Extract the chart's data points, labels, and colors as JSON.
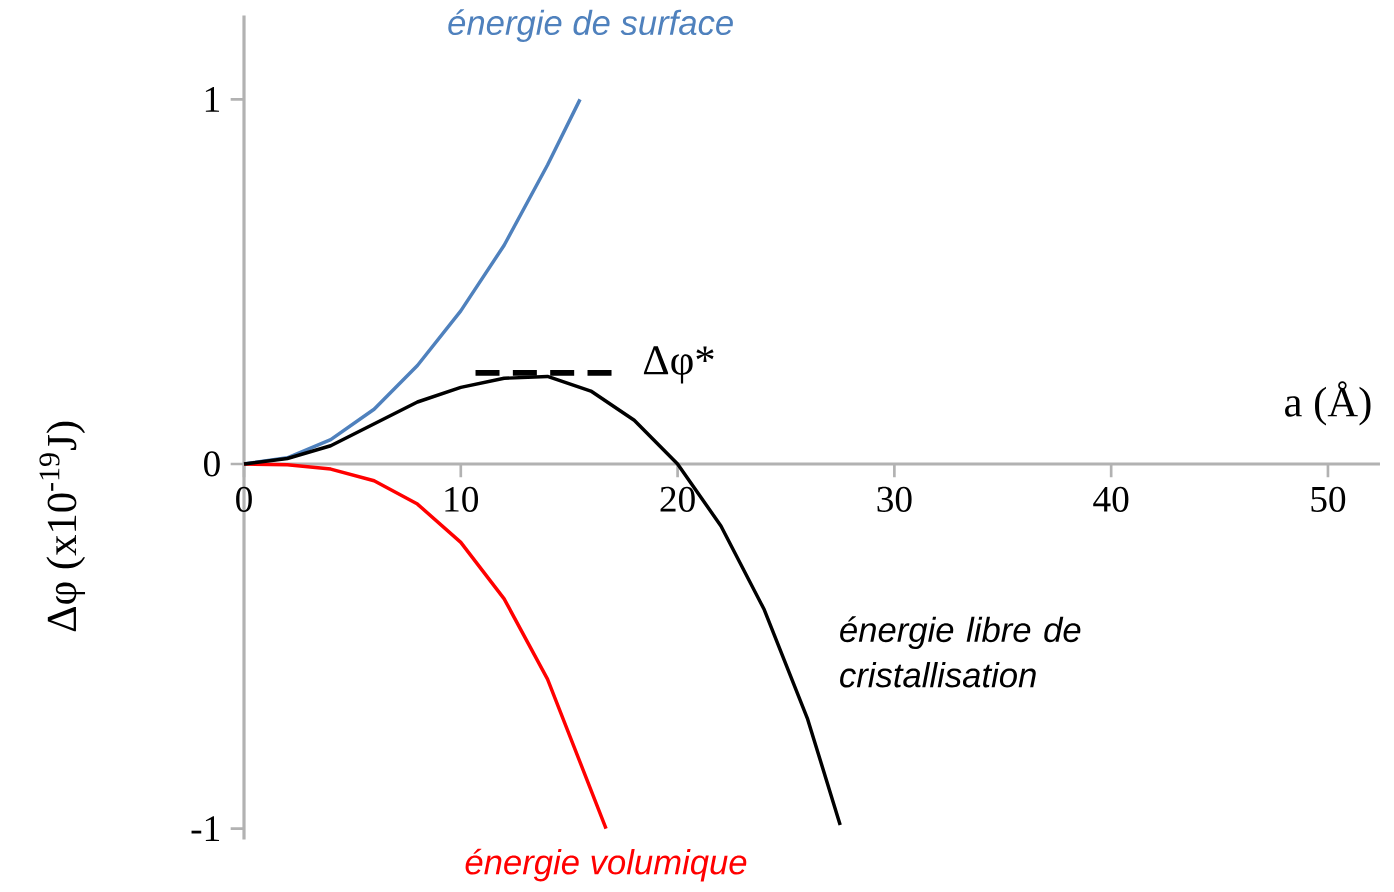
{
  "chart_data": {
    "type": "line",
    "xlabel": "a (Å)",
    "ylabel": "Δφ (x10$^{-19}$J)",
    "xlim": [
      0,
      52.4
    ],
    "ylim": [
      -1.03,
      1.23
    ],
    "xticks": [
      0,
      10,
      20,
      30,
      40,
      50
    ],
    "yticks": [
      -1,
      0,
      1
    ],
    "line_style": "solid",
    "grid": false,
    "series": [
      {
        "name": "*énergie de surface*",
        "color": "#4f81bd",
        "x": [
          0,
          2,
          4,
          6,
          8,
          10,
          12,
          14,
          15.5
        ],
        "values": [
          0,
          0.017,
          0.067,
          0.15,
          0.27,
          0.42,
          0.6,
          0.82,
          1.0
        ]
      },
      {
        "name": "*énergie volumique*",
        "color": "#ff0000",
        "x": [
          0,
          2,
          4,
          6,
          8,
          10,
          12,
          14,
          16.7
        ],
        "values": [
          0,
          -0.002,
          -0.014,
          -0.046,
          -0.11,
          -0.215,
          -0.37,
          -0.59,
          -1.0
        ]
      },
      {
        "name": "*énergie libre de cristallisation*",
        "color": "#000000",
        "x": [
          0,
          2,
          4,
          6,
          8,
          10,
          12,
          14,
          16,
          18,
          20,
          22,
          24,
          26,
          27.5
        ],
        "values": [
          0,
          0.015,
          0.05,
          0.11,
          0.17,
          0.21,
          0.235,
          0.24,
          0.2,
          0.12,
          0.0,
          -0.17,
          -0.4,
          -0.7,
          -0.99
        ]
      }
    ],
    "annotations": [
      {
        "text": "Δφ*",
        "x": 14,
        "y": 0.25
      }
    ]
  }
}
